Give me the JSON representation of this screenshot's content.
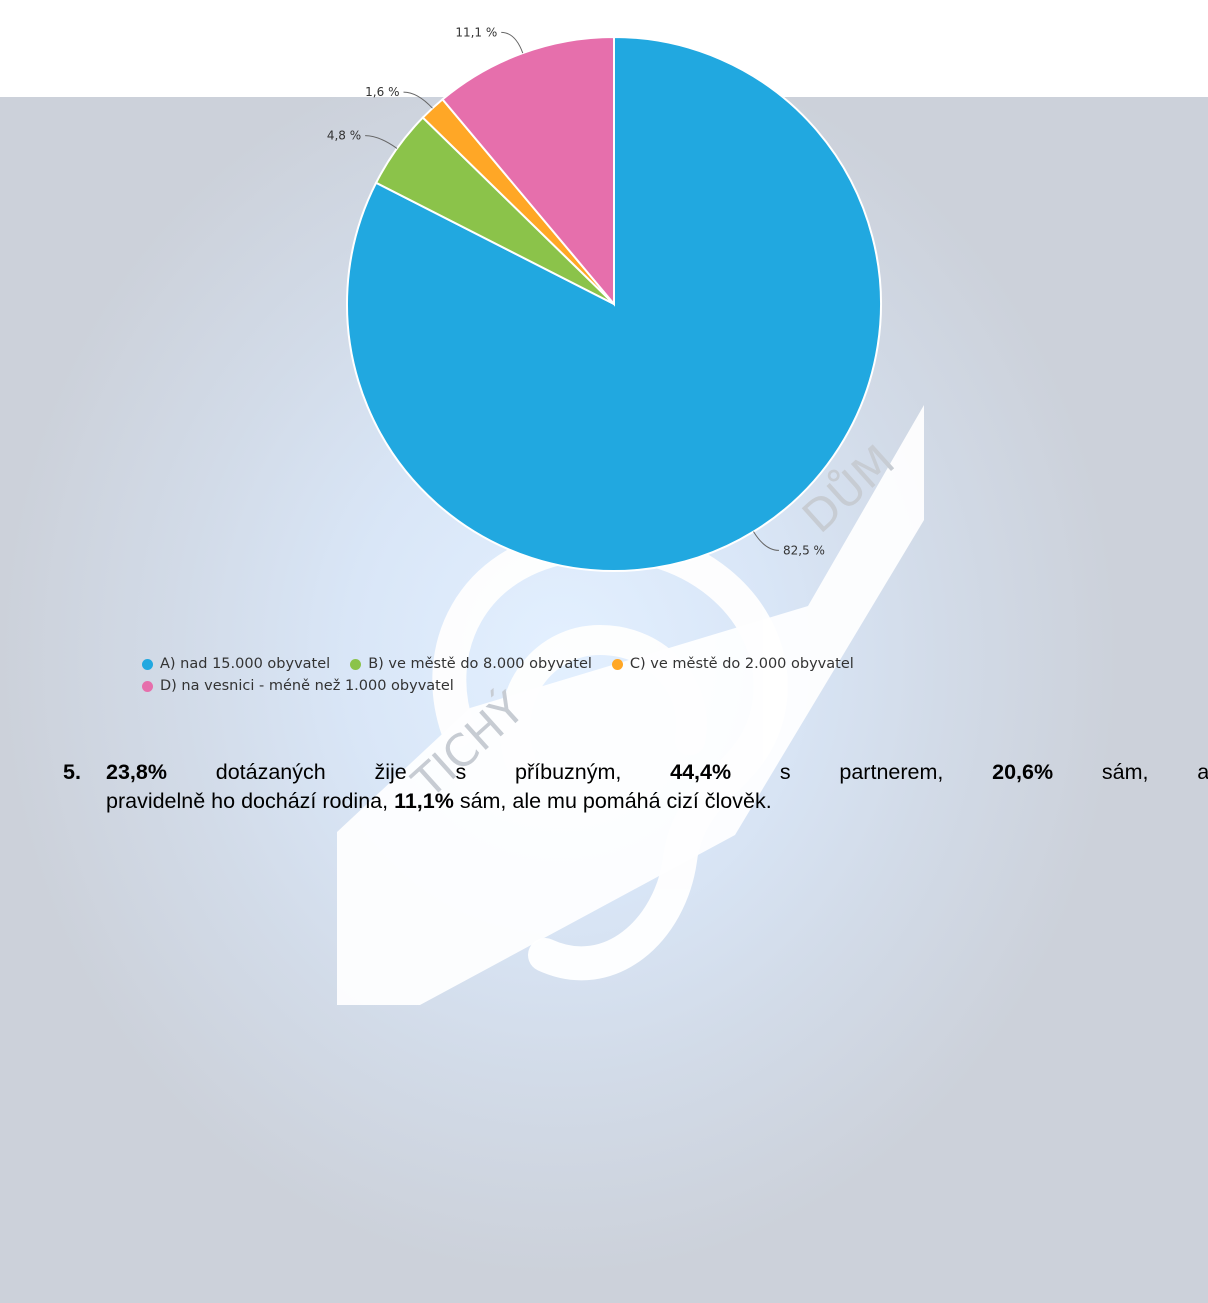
{
  "chart_data": {
    "type": "pie",
    "slices": [
      {
        "label": "A) nad 15.000 obyvatel",
        "value": 82.5,
        "value_label": "82,5 %",
        "color": "#21a8e0"
      },
      {
        "label": "B) ve městě do 8.000 obyvatel",
        "value": 4.8,
        "value_label": "4,8 %",
        "color": "#8bc34a"
      },
      {
        "label": "C) ve městě do 2.000 obyvatel",
        "value": 1.6,
        "value_label": "1,6 %",
        "color": "#ffa726"
      },
      {
        "label": "D) na vesnici - méně než 1.000 obyvatel",
        "value": 11.1,
        "value_label": "11,1 %",
        "color": "#e66fac"
      }
    ],
    "legend_position": "bottom"
  },
  "watermark": {
    "left_text": "TICHÝ",
    "right_text": "DŮM"
  },
  "paragraph": {
    "number": "5.",
    "p1": "23,8%",
    "t1": "dotázaných",
    "t2": "žije",
    "t3": "s",
    "t4": "příbuzným,",
    "p2": "44,4%",
    "t5": "s",
    "t6": "partnerem,",
    "p3": "20,6%",
    "t7": "sám,",
    "t8": "ale",
    "line2_a": "pravidelně ho dochází rodina, ",
    "p4": "11,1%",
    "line2_b": " sám, ale mu pomáhá cizí člověk."
  }
}
